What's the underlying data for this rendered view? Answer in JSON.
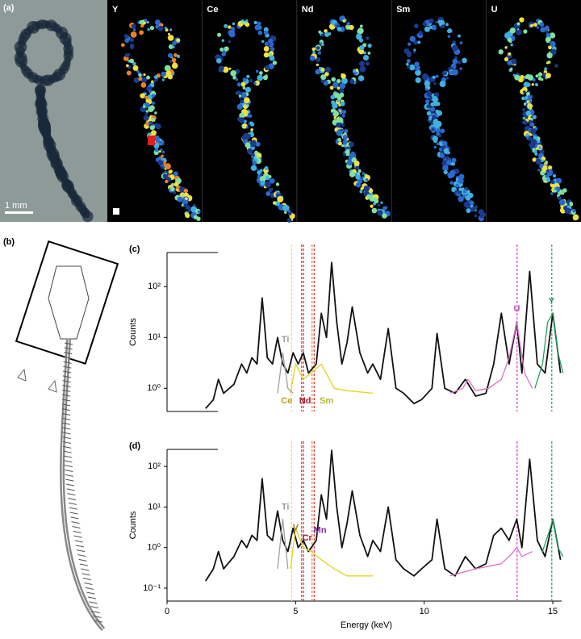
{
  "panel_a": {
    "label": "(a)",
    "maps": [
      "Y",
      "Ce",
      "Nd",
      "Sm",
      "U"
    ],
    "scale_bar": "1 mm"
  },
  "panel_b": {
    "label": "(b)"
  },
  "chart_data": [
    {
      "type": "line",
      "panel_label": "(c)",
      "ylabel": "Counts",
      "log_y": true,
      "xlim": [
        0,
        15.5
      ],
      "ylim": [
        0.35,
        470
      ],
      "yticks": [
        {
          "value": 1,
          "label": "10⁰"
        },
        {
          "value": 10,
          "label": "10¹"
        },
        {
          "value": 100,
          "label": "10²"
        }
      ],
      "series": [
        {
          "color": "#111111",
          "x": [
            1.5,
            1.8,
            2.0,
            2.2,
            2.6,
            2.9,
            3.1,
            3.3,
            3.5,
            3.7,
            3.9,
            4.1,
            4.3,
            4.5,
            4.7,
            4.9,
            5.1,
            5.3,
            5.5,
            5.8,
            6.0,
            6.2,
            6.4,
            6.6,
            6.8,
            7.0,
            7.2,
            7.5,
            7.8,
            8.0,
            8.3,
            8.6,
            8.9,
            9.2,
            9.6,
            9.9,
            10.3,
            10.5,
            10.8,
            11.2,
            11.6,
            12.0,
            12.4,
            12.7,
            13.0,
            13.3,
            13.6,
            13.8,
            14.1,
            14.4,
            14.7,
            15.0,
            15.3
          ],
          "values": [
            0.4,
            0.6,
            1.5,
            0.8,
            1.2,
            3,
            2,
            4,
            3,
            60,
            4,
            3,
            10,
            3,
            2,
            5,
            3,
            5,
            2,
            3,
            30,
            10,
            300,
            20,
            3,
            8,
            40,
            5,
            2,
            3,
            1.5,
            15,
            1,
            0.8,
            0.5,
            0.6,
            1,
            12,
            1,
            0.8,
            1.5,
            0.7,
            0.8,
            3,
            30,
            3,
            20,
            2,
            200,
            3,
            2,
            30,
            2
          ]
        },
        {
          "color": "#e6d21e",
          "x": [
            4.8,
            5.0,
            5.3,
            5.6,
            6.0,
            6.5,
            7.0,
            8.0
          ],
          "values": [
            0.8,
            3,
            1.5,
            2,
            3,
            1,
            0.9,
            0.8
          ]
        },
        {
          "color": "#a0a0a0",
          "x": [
            4.3,
            4.5,
            4.7,
            4.9
          ],
          "values": [
            0.8,
            5,
            1,
            0.8
          ]
        },
        {
          "color": "#e070c8",
          "x": [
            11,
            11.5,
            11.7,
            12,
            12.5,
            13,
            13.3,
            13.6,
            13.9,
            14.2
          ],
          "values": [
            0.8,
            1,
            1.5,
            0.9,
            1,
            1.5,
            4,
            20,
            2,
            1
          ]
        },
        {
          "color": "#20a060",
          "x": [
            14.3,
            14.6,
            14.8,
            15,
            15.2,
            15.4
          ],
          "values": [
            1,
            3,
            20,
            30,
            5,
            2
          ]
        }
      ],
      "markers": [
        {
          "x": 4.84,
          "color": "#f0e040"
        },
        {
          "x": 5.23,
          "color": "#e05020"
        },
        {
          "x": 5.3,
          "color": "#d02030"
        },
        {
          "x": 5.64,
          "color": "#e08030"
        },
        {
          "x": 5.72,
          "color": "#d03040"
        },
        {
          "x": 13.61,
          "color": "#d040c0"
        },
        {
          "x": 14.96,
          "color": "#20a070"
        }
      ],
      "labels": [
        {
          "text": "Ti",
          "color": "#9a9a9a",
          "x": 4.6,
          "y": 9
        },
        {
          "text": "Ce",
          "color": "#b5a31a",
          "x": 4.65,
          "y": 0.56
        },
        {
          "text": "Nd",
          "color": "#b0182a",
          "x": 5.37,
          "y": 0.56
        },
        {
          "text": "Sm",
          "color": "#b8b830",
          "x": 6.2,
          "y": 0.56
        },
        {
          "text": "U",
          "color": "#c050b0",
          "x": 13.6,
          "y": 36
        },
        {
          "text": "Y",
          "color": "#2a8a5a",
          "x": 14.95,
          "y": 51
        }
      ]
    },
    {
      "type": "line",
      "panel_label": "(d)",
      "ylabel": "Counts",
      "xlabel": "Energy (keV)",
      "log_y": true,
      "xlim": [
        0,
        15.5
      ],
      "ylim": [
        0.048,
        263
      ],
      "xticks": [
        0,
        5,
        10,
        15
      ],
      "yticks": [
        {
          "value": 0.1,
          "label": "10⁻¹"
        },
        {
          "value": 1,
          "label": "10⁰"
        },
        {
          "value": 10,
          "label": "10¹"
        },
        {
          "value": 100,
          "label": "10²"
        }
      ],
      "series": [
        {
          "color": "#111111",
          "x": [
            1.5,
            1.8,
            2.0,
            2.2,
            2.6,
            2.9,
            3.1,
            3.3,
            3.5,
            3.7,
            3.9,
            4.1,
            4.3,
            4.5,
            4.7,
            4.9,
            5.1,
            5.3,
            5.5,
            5.8,
            6.0,
            6.2,
            6.4,
            6.6,
            6.8,
            7.0,
            7.2,
            7.5,
            7.8,
            8.0,
            8.3,
            8.6,
            8.9,
            9.2,
            9.6,
            9.9,
            10.3,
            10.5,
            10.8,
            11.2,
            11.6,
            12.0,
            12.4,
            12.7,
            13.0,
            13.3,
            13.6,
            13.8,
            14.1,
            14.4,
            14.7,
            15.0,
            15.3
          ],
          "values": [
            0.15,
            0.3,
            0.8,
            0.3,
            0.6,
            1.5,
            1,
            2,
            1.5,
            50,
            2,
            1.5,
            8,
            1.5,
            0.8,
            3,
            1,
            1.5,
            0.8,
            1.5,
            20,
            5,
            250,
            10,
            1,
            4,
            25,
            2,
            0.6,
            1.5,
            0.8,
            10,
            0.5,
            0.3,
            0.2,
            0.3,
            0.5,
            5,
            0.3,
            0.2,
            0.6,
            0.3,
            0.4,
            2,
            3,
            1.5,
            5,
            1,
            150,
            1.5,
            0.6,
            5,
            0.5
          ]
        },
        {
          "color": "#e6d21e",
          "x": [
            4.8,
            5.0,
            5.3,
            5.6,
            6.0,
            6.5,
            7.0,
            8.0
          ],
          "values": [
            0.3,
            3,
            1,
            0.8,
            0.5,
            0.3,
            0.2,
            0.2
          ]
        },
        {
          "color": "#a0a0a0",
          "x": [
            4.3,
            4.5,
            4.7
          ],
          "values": [
            0.3,
            5,
            0.3
          ]
        },
        {
          "color": "#e070c8",
          "x": [
            11,
            12,
            13,
            13.4,
            13.6,
            13.8,
            14.2
          ],
          "values": [
            0.2,
            0.3,
            0.4,
            0.7,
            1,
            0.6,
            0.8
          ]
        },
        {
          "color": "#20a060",
          "x": [
            14.6,
            14.9,
            15,
            15.2,
            15.4
          ],
          "values": [
            0.8,
            3,
            5,
            1,
            0.6
          ]
        }
      ],
      "markers": [
        {
          "x": 4.84,
          "color": "#f0e040"
        },
        {
          "x": 5.23,
          "color": "#e05020"
        },
        {
          "x": 5.3,
          "color": "#d02030"
        },
        {
          "x": 5.64,
          "color": "#e08030"
        },
        {
          "x": 5.72,
          "color": "#d03040"
        },
        {
          "x": 13.61,
          "color": "#d040c0"
        },
        {
          "x": 14.96,
          "color": "#20a070"
        }
      ],
      "labels": [
        {
          "text": "Ti",
          "color": "#9a9a9a",
          "x": 4.6,
          "y": 10
        },
        {
          "text": "V",
          "color": "#b07a10",
          "x": 5.0,
          "y": 3
        },
        {
          "text": "Cr",
          "color": "#a01828",
          "x": 5.45,
          "y": 1.7
        },
        {
          "text": "Mn",
          "color": "#7a2a9a",
          "x": 5.95,
          "y": 2.6
        }
      ]
    }
  ]
}
